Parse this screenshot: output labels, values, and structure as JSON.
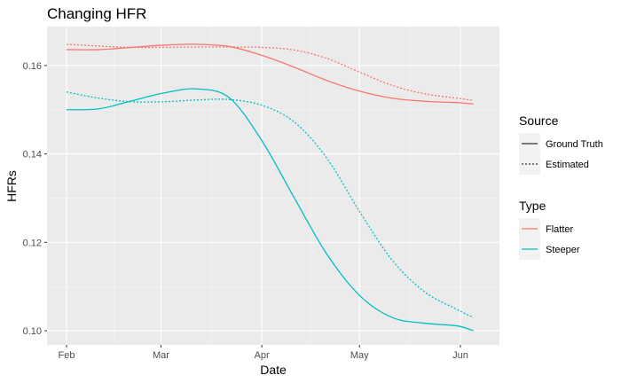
{
  "chart_data": {
    "type": "line",
    "title": "Changing HFR",
    "xlabel": "Date",
    "ylabel": "HFRs",
    "x_ticks": [
      "Feb",
      "Mar",
      "Apr",
      "May",
      "Jun"
    ],
    "x_tick_dates": [
      "2020-02-01",
      "2020-03-01",
      "2020-04-01",
      "2020-05-01",
      "2020-06-01"
    ],
    "xlim": [
      "2020-01-26",
      "2020-06-13"
    ],
    "y_ticks": [
      0.1,
      0.12,
      0.14,
      0.16
    ],
    "y_tick_labels": [
      "0.10",
      "0.12",
      "0.14",
      "0.16"
    ],
    "ylim": [
      0.0968,
      0.1688
    ],
    "grid": true,
    "legend_position": "right",
    "legend": {
      "source_title": "Source",
      "source_entries": [
        {
          "label": "Ground Truth",
          "linetype": "solid"
        },
        {
          "label": "Estimated",
          "linetype": "dotted"
        }
      ],
      "type_title": "Type",
      "type_entries": [
        {
          "label": "Flatter",
          "color": "#F8766D"
        },
        {
          "label": "Steeper",
          "color": "#00BFC4"
        }
      ]
    },
    "series": [
      {
        "type": "Flatter",
        "source": "Ground Truth",
        "color": "#F8766D",
        "linetype": "solid",
        "x": [
          "2020-02-01",
          "2020-02-11",
          "2020-02-21",
          "2020-03-02",
          "2020-03-12",
          "2020-03-22",
          "2020-04-01",
          "2020-04-11",
          "2020-04-21",
          "2020-05-01",
          "2020-05-11",
          "2020-05-21",
          "2020-05-31",
          "2020-06-05"
        ],
        "y": [
          0.1636,
          0.1636,
          0.1641,
          0.1646,
          0.1648,
          0.1643,
          0.1623,
          0.1596,
          0.1566,
          0.1542,
          0.1526,
          0.1519,
          0.1516,
          0.1513
        ]
      },
      {
        "type": "Flatter",
        "source": "Estimated",
        "color": "#F8766D",
        "linetype": "dotted",
        "x": [
          "2020-02-01",
          "2020-02-11",
          "2020-02-21",
          "2020-03-02",
          "2020-03-12",
          "2020-03-22",
          "2020-04-01",
          "2020-04-11",
          "2020-04-21",
          "2020-05-01",
          "2020-05-11",
          "2020-05-21",
          "2020-05-31",
          "2020-06-05"
        ],
        "y": [
          0.1648,
          0.1644,
          0.1641,
          0.1641,
          0.1642,
          0.1642,
          0.1641,
          0.1635,
          0.1616,
          0.1585,
          0.1555,
          0.1536,
          0.1526,
          0.1521
        ]
      },
      {
        "type": "Steeper",
        "source": "Ground Truth",
        "color": "#00BFC4",
        "linetype": "solid",
        "x": [
          "2020-02-01",
          "2020-02-11",
          "2020-02-21",
          "2020-03-02",
          "2020-03-12",
          "2020-03-22",
          "2020-04-01",
          "2020-04-11",
          "2020-04-21",
          "2020-05-01",
          "2020-05-11",
          "2020-05-21",
          "2020-05-31",
          "2020-06-05"
        ],
        "y": [
          0.15,
          0.1502,
          0.152,
          0.1538,
          0.1547,
          0.1527,
          0.143,
          0.13,
          0.1173,
          0.108,
          0.103,
          0.1017,
          0.1011,
          0.1
        ]
      },
      {
        "type": "Steeper",
        "source": "Estimated",
        "color": "#00BFC4",
        "linetype": "dotted",
        "x": [
          "2020-02-01",
          "2020-02-11",
          "2020-02-21",
          "2020-03-02",
          "2020-03-12",
          "2020-03-22",
          "2020-04-01",
          "2020-04-11",
          "2020-04-21",
          "2020-05-01",
          "2020-05-11",
          "2020-05-21",
          "2020-05-31",
          "2020-06-05"
        ],
        "y": [
          0.154,
          0.1526,
          0.1518,
          0.1518,
          0.1522,
          0.1523,
          0.151,
          0.1472,
          0.139,
          0.127,
          0.116,
          0.1088,
          0.1048,
          0.103
        ]
      }
    ]
  }
}
